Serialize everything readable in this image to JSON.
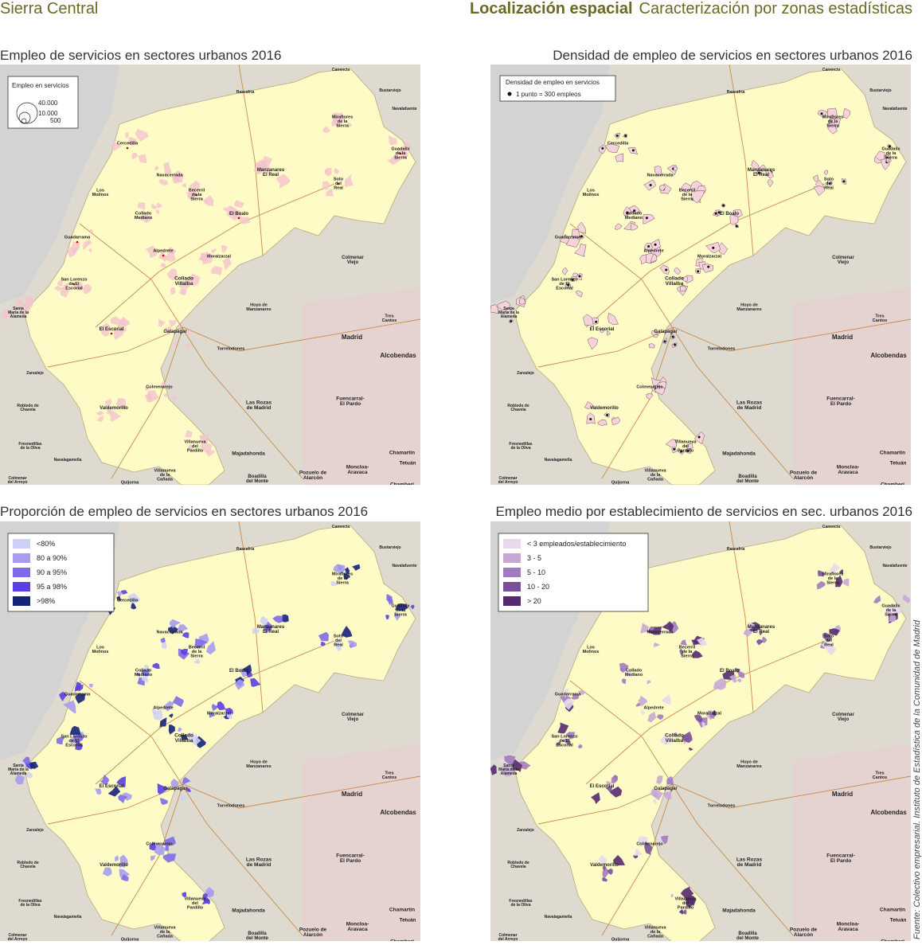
{
  "header": {
    "left": "Sierra Central",
    "section": "Localización espacial",
    "subtitle": "Caracterización por zonas estadísticas"
  },
  "maps": [
    {
      "title": "Empleo de servicios en sectores urbanos 2016",
      "legend": {
        "title": "Empleo en servicios",
        "items": [
          "40.000",
          "10.000",
          "500"
        ]
      }
    },
    {
      "title": "Densidad de empleo de servicios en sectores urbanos 2016",
      "legend": {
        "title": "Densidad de empleo en servicios",
        "items": [
          "1 punto = 300 empleos"
        ]
      }
    },
    {
      "title": "Proporción de empleo de servicios en sectores urbanos 2016",
      "legend": {
        "items": [
          {
            "label": "<80%",
            "color": "#cfd0f5"
          },
          {
            "label": "80 a 90%",
            "color": "#a79cf0"
          },
          {
            "label": "90 a 95%",
            "color": "#7f6be6"
          },
          {
            "label": "95 a 98%",
            "color": "#5b3fe0"
          },
          {
            "label": ">98%",
            "color": "#15237a"
          }
        ]
      }
    },
    {
      "title": "Empleo medio por establecimiento de servicios en sec. urbanos 2016",
      "legend": {
        "items": [
          {
            "label": "< 3 empleados/establecimiento",
            "color": "#e7d8ee"
          },
          {
            "label": "3 - 5",
            "color": "#c6a7d6"
          },
          {
            "label": "5 - 10",
            "color": "#a27bbf"
          },
          {
            "label": "10 - 20",
            "color": "#7a4f9a"
          },
          {
            "label": "> 20",
            "color": "#572a6f"
          }
        ]
      }
    }
  ],
  "places": [
    [
      "Canencia"
    ],
    [
      "Bustarviejo"
    ],
    [
      "Rascafría"
    ],
    [
      "Navalafuente"
    ],
    [
      "Miraflores",
      "de la",
      "Sierra"
    ],
    [
      "Guadalix",
      "de la",
      "Sierra"
    ],
    [
      "Cercedilla"
    ],
    [
      "Navacerrada"
    ],
    [
      "Manzanares",
      "El Real"
    ],
    [
      "Soto",
      "del",
      "Real"
    ],
    [
      "Los",
      "Molinos"
    ],
    [
      "Becerril",
      "de la",
      "Sierra"
    ],
    [
      "Collado",
      "Mediano"
    ],
    [
      "El Boalo"
    ],
    [
      "Guadarrama"
    ],
    [
      "Alpedrete"
    ],
    [
      "Moralzarzal"
    ],
    [
      "Colmenar",
      "Viejo"
    ],
    [
      "San Lorenzo",
      "de El",
      "Escorial"
    ],
    [
      "Collado",
      "Villalba"
    ],
    [
      "Hoyo de",
      "Manzanares"
    ],
    [
      "Tres",
      "Cantos"
    ],
    [
      "Santa",
      "María de la",
      "Alameda"
    ],
    [
      "El Escorial"
    ],
    [
      "Galapagar"
    ],
    [
      "Madrid"
    ],
    [
      "Alcobendas"
    ],
    [
      "Torrelodones"
    ],
    [
      "Zarzalejo"
    ],
    [
      "Colmenarejo"
    ],
    [
      "Las Rozas",
      "de Madrid"
    ],
    [
      "Fuencarral-",
      "El Pardo"
    ],
    [
      "Robledo de",
      "Chavela"
    ],
    [
      "Valdemorillo"
    ],
    [
      "Villanueva",
      "del",
      "Pardillo"
    ],
    [
      "Fresnedillas",
      "de la Oliva"
    ],
    [
      "Majadahonda"
    ],
    [
      "Chamartín"
    ],
    [
      "Tetuán"
    ],
    [
      "Navalagamella"
    ],
    [
      "Villanueva",
      "de la",
      "Cañada"
    ],
    [
      "Boadilla",
      "del Monte"
    ],
    [
      "Pozuelo de",
      "Alarcón"
    ],
    [
      "Moncloa-",
      "Aravaca"
    ],
    [
      "Colmenar",
      "del Arroyo"
    ],
    [
      "Quijorna"
    ],
    [
      "Chamberí"
    ]
  ],
  "source": "Fuente: Colectivo empresarial. Instituto de Estadística de la Comunidad de Madrid"
}
